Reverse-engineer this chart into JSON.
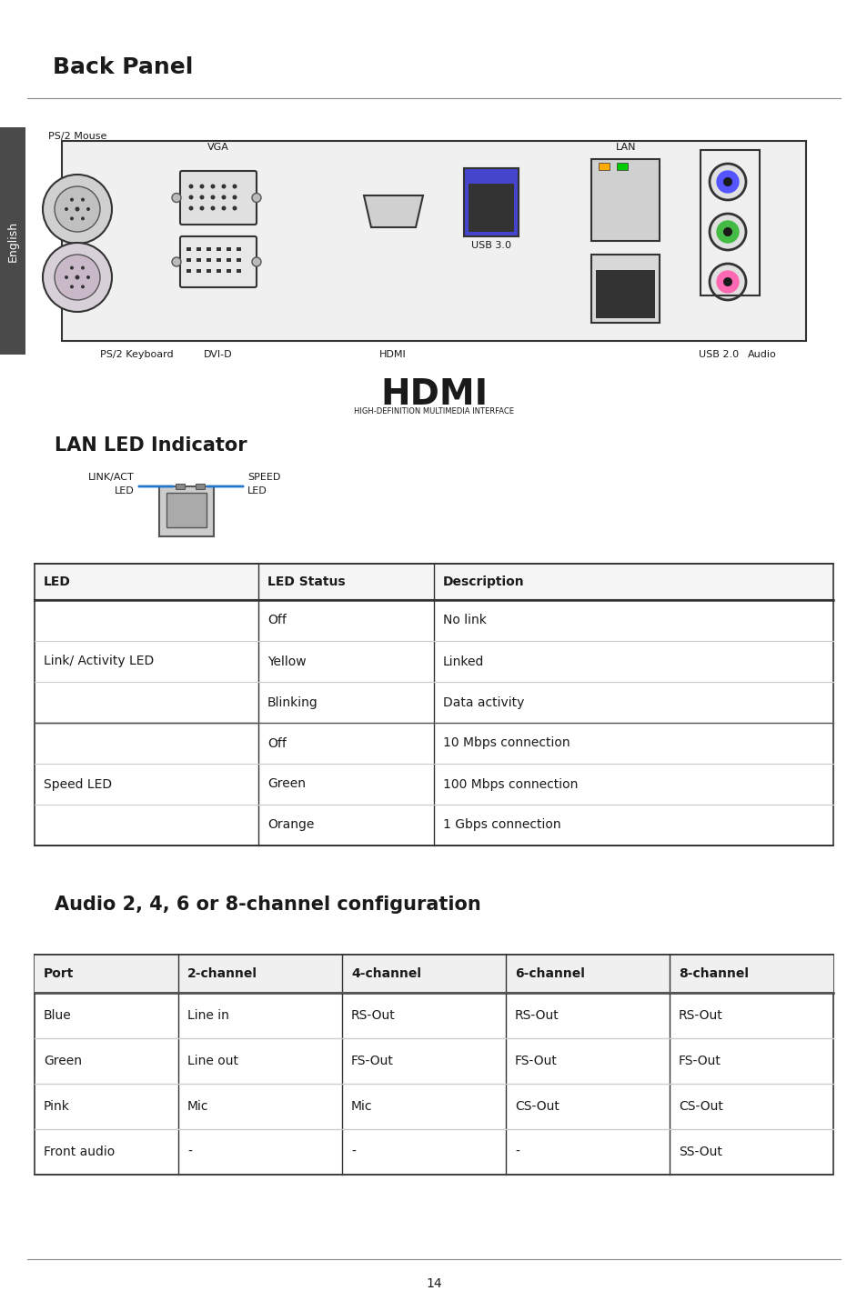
{
  "page_title": "Back Panel",
  "section1_title": "LAN LED Indicator",
  "section2_title": "Audio 2, 4, 6 or 8-channel configuration",
  "page_number": "14",
  "bg_color": "#ffffff",
  "text_color": "#1a1a1a",
  "sidebar_color": "#4a4a4a",
  "lan_table_headers": [
    "LED",
    "LED Status",
    "Description"
  ],
  "lan_table_rows": [
    [
      "Link/ Activity LED",
      "Off",
      "No link"
    ],
    [
      "Link/ Activity LED",
      "Yellow",
      "Linked"
    ],
    [
      "Link/ Activity LED",
      "Blinking",
      "Data activity"
    ],
    [
      "Speed LED",
      "Off",
      "10 Mbps connection"
    ],
    [
      "Speed LED",
      "Green",
      "100 Mbps connection"
    ],
    [
      "Speed LED",
      "Orange",
      "1 Gbps connection"
    ]
  ],
  "audio_table_headers": [
    "Port",
    "2-channel",
    "4-channel",
    "6-channel",
    "8-channel"
  ],
  "audio_table_rows": [
    [
      "Blue",
      "Line in",
      "RS-Out",
      "RS-Out",
      "RS-Out"
    ],
    [
      "Green",
      "Line out",
      "FS-Out",
      "FS-Out",
      "FS-Out"
    ],
    [
      "Pink",
      "Mic",
      "Mic",
      "CS-Out",
      "CS-Out"
    ],
    [
      "Front audio",
      "-",
      "-",
      "-",
      "SS-Out"
    ]
  ],
  "connector_labels": {
    "ps2_mouse": "PS/2 Mouse",
    "vga": "VGA",
    "dvi_d": "DVI-D",
    "ps2_keyboard": "PS/2 Keyboard",
    "hdmi": "HDMI",
    "usb30": "USB 3.0",
    "usb20": "USB 2.0",
    "lan": "LAN",
    "audio": "Audio"
  }
}
